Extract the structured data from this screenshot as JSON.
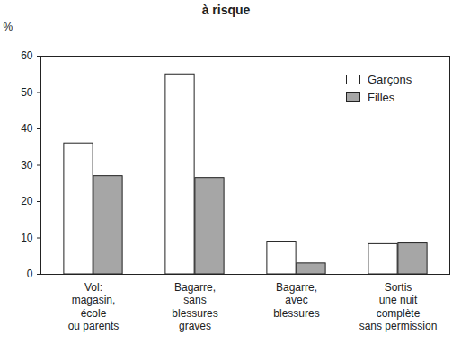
{
  "chart_data": {
    "type": "bar",
    "title": "à risque",
    "y_label": "%",
    "categories": [
      "Vol:\nmagasin,\nécole\nou parents",
      "Bagarre,\nsans\nblessures\ngraves",
      "Bagarre,\navec\nblessures",
      "Sortis\nune nuit\ncomplète\nsans permission"
    ],
    "series": [
      {
        "name": "Garçons",
        "color": "#ffffff",
        "values": [
          36,
          55,
          9,
          8.3
        ]
      },
      {
        "name": "Filles",
        "color": "#a6a6a6",
        "values": [
          27,
          26.5,
          3,
          8.5
        ]
      }
    ],
    "ylim": [
      0,
      60
    ],
    "yticks": [
      0,
      10,
      20,
      30,
      40,
      50,
      60
    ],
    "grid": false,
    "legend": "top-right"
  }
}
